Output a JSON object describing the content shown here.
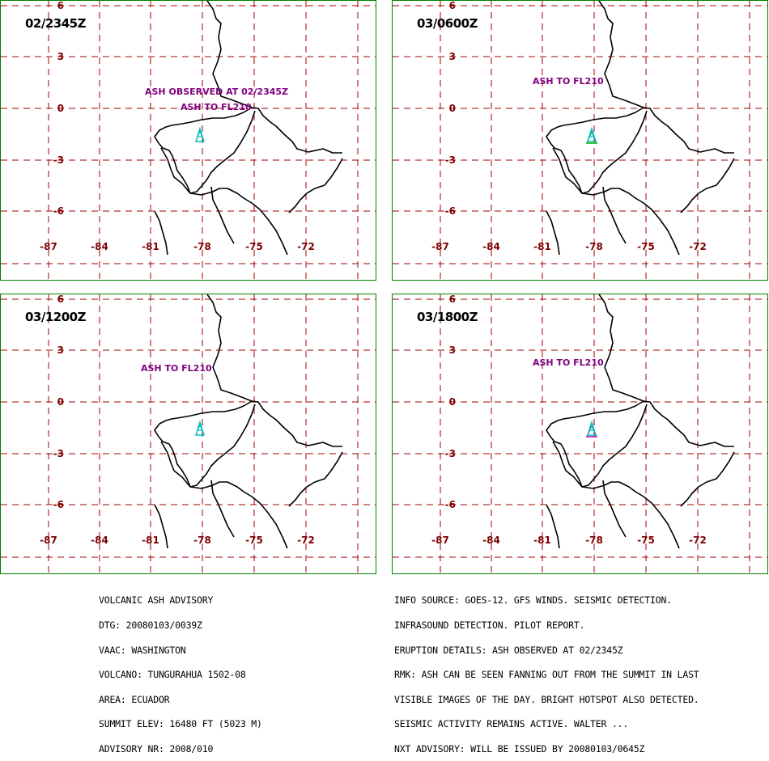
{
  "colors": {
    "frame": "#008000",
    "grid": "#a00000",
    "labels": "#800000",
    "annotations": "#800080",
    "coast": "#000000",
    "volcano_marker": "#00c0c0",
    "ash_green": "#00b000",
    "ash_magenta": "#c000c0"
  },
  "axes": {
    "lon_ticks": [
      "-87",
      "-84",
      "-81",
      "-78",
      "-75",
      "-72"
    ],
    "lat_ticks": [
      "6",
      "3",
      "0",
      "-3",
      "-6"
    ]
  },
  "panels": [
    {
      "time": "02/2345Z",
      "notes": [
        "ASH OBSERVED AT 02/2345Z",
        "ASH TO FL210"
      ]
    },
    {
      "time": "03/0600Z",
      "notes": [
        "ASH TO FL210"
      ]
    },
    {
      "time": "03/1200Z",
      "notes": [
        "ASH TO FL210"
      ]
    },
    {
      "time": "03/1800Z",
      "notes": [
        "ASH TO FL210"
      ]
    }
  ],
  "advisory_left": [
    "VOLCANIC ASH ADVISORY",
    "DTG: 20080103/0039Z",
    "VAAC: WASHINGTON",
    "VOLCANO: TUNGURAHUA 1502-08",
    "AREA: ECUADOR",
    "SUMMIT ELEV: 16480 FT (5023 M)",
    "ADVISORY NR: 2008/010"
  ],
  "advisory_right": [
    "INFO SOURCE: GOES-12. GFS WINDS. SEISMIC DETECTION.",
    "INFRASOUND DETECTION. PILOT REPORT.",
    "ERUPTION DETAILS: ASH OBSERVED AT 02/2345Z",
    "RMK: ASH CAN BE SEEN FANNING OUT FROM THE SUMMIT IN LAST",
    "VISIBLE IMAGES OF THE DAY. BRIGHT HOTSPOT ALSO DETECTED.",
    "SEISMIC ACTIVITY REMAINS ACTIVE. WALTER ...",
    "NXT ADVISORY: WILL BE ISSUED BY 20080103/0645Z"
  ]
}
